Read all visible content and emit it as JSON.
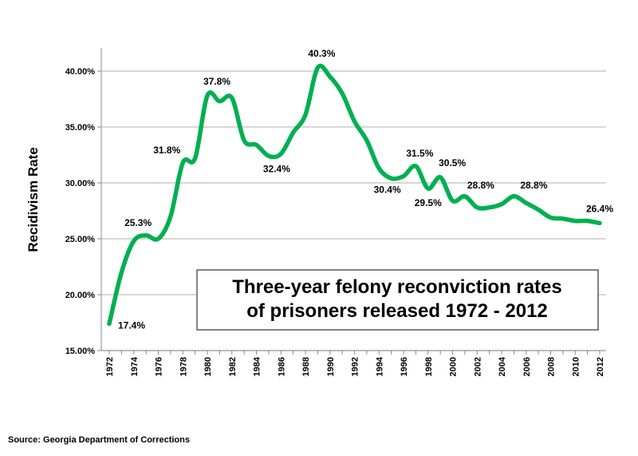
{
  "chart_data": {
    "type": "line",
    "title": "Three-year felony reconviction rates of prisoners released 1972 - 2012",
    "title_lines": [
      "Three-year felony reconviction rates",
      "of prisoners released 1972 - 2012"
    ],
    "xlabel": "",
    "ylabel": "Recidivism Rate",
    "ylim": [
      15,
      40
    ],
    "yticks": [
      "15.00%",
      "20.00%",
      "25.00%",
      "30.00%",
      "35.00%",
      "40.00%"
    ],
    "xticks": [
      "1972",
      "1974",
      "1976",
      "1978",
      "1980",
      "1982",
      "1984",
      "1986",
      "1988",
      "1990",
      "1992",
      "1994",
      "1996",
      "1998",
      "2000",
      "2002",
      "2004",
      "2006",
      "2008",
      "2010",
      "2012"
    ],
    "grid": "horizontal",
    "line_color": "#00b050",
    "x": [
      1972,
      1973,
      1974,
      1975,
      1976,
      1977,
      1978,
      1979,
      1980,
      1981,
      1982,
      1983,
      1984,
      1985,
      1986,
      1987,
      1988,
      1989,
      1990,
      1991,
      1992,
      1993,
      1994,
      1995,
      1996,
      1997,
      1998,
      1999,
      2000,
      2001,
      2002,
      2003,
      2004,
      2005,
      2006,
      2007,
      2008,
      2009,
      2010,
      2011,
      2012
    ],
    "values": [
      17.4,
      22.0,
      24.8,
      25.3,
      25.0,
      27.0,
      31.8,
      32.2,
      37.8,
      37.3,
      37.6,
      33.8,
      33.4,
      32.4,
      32.6,
      34.5,
      36.1,
      40.3,
      39.5,
      38.0,
      35.5,
      33.8,
      31.3,
      30.4,
      30.6,
      31.5,
      29.5,
      30.5,
      28.4,
      28.8,
      27.8,
      27.8,
      28.1,
      28.8,
      28.2,
      27.6,
      26.9,
      26.8,
      26.6,
      26.6,
      26.4
    ],
    "annotations": [
      {
        "year": 1972,
        "label": "17.4%"
      },
      {
        "year": 1975,
        "label": "25.3%"
      },
      {
        "year": 1978,
        "label": "31.8%"
      },
      {
        "year": 1980,
        "label": "37.8%"
      },
      {
        "year": 1985,
        "label": "32.4%"
      },
      {
        "year": 1989,
        "label": "40.3%"
      },
      {
        "year": 1995,
        "label": "30.4%"
      },
      {
        "year": 1997,
        "label": "31.5%"
      },
      {
        "year": 1998,
        "label": "29.5%"
      },
      {
        "year": 1999,
        "label": "30.5%"
      },
      {
        "year": 2001,
        "label": "28.8%"
      },
      {
        "year": 2005,
        "label": "28.8%"
      },
      {
        "year": 2012,
        "label": "26.4%"
      }
    ]
  },
  "source": "Source: Georgia Department of Corrections"
}
